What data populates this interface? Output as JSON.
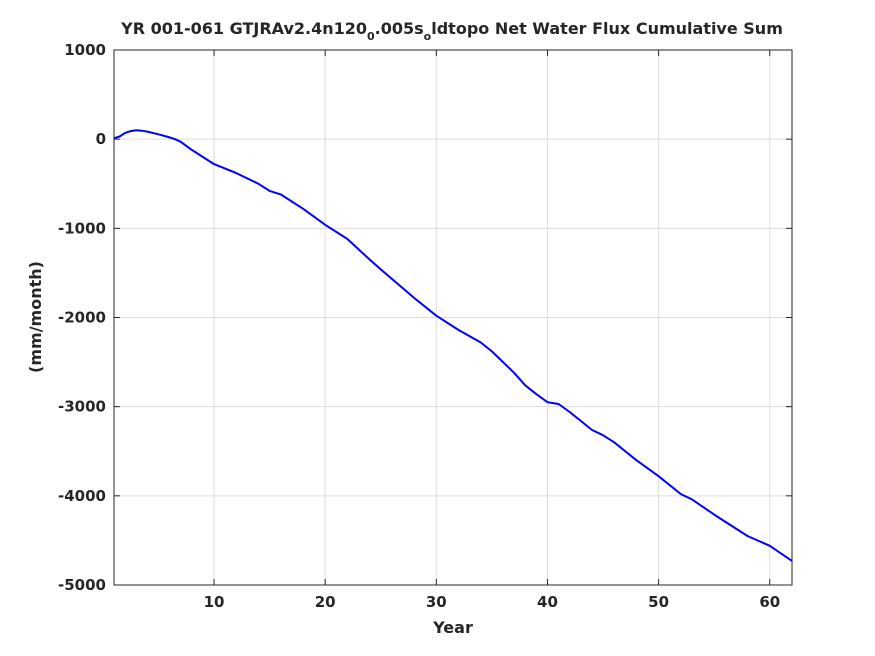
{
  "chart_data": {
    "type": "line",
    "title": {
      "prefix": "YR 001-061 GTJRAv2.4n120",
      "sub1": "0",
      "mid": ".005s",
      "sub2": "o",
      "suffix": "ldtopo Net Water Flux Cumulative Sum"
    },
    "xlabel": "Year",
    "ylabel": "(mm/month)",
    "xlim": [
      1,
      62
    ],
    "ylim": [
      -5000,
      1000
    ],
    "xticks": [
      10,
      20,
      30,
      40,
      50,
      60
    ],
    "yticks": [
      1000,
      0,
      -1000,
      -2000,
      -3000,
      -4000,
      -5000
    ],
    "grid": true,
    "series": [
      {
        "color": "#0000ff",
        "x": [
          1,
          1.5,
          2,
          2.5,
          3,
          3.5,
          4,
          5,
          6,
          6.5,
          7,
          8,
          10,
          12,
          14,
          15,
          16,
          18,
          20,
          22,
          24,
          25,
          28,
          30,
          32,
          34,
          35,
          37,
          38,
          39,
          40,
          40.5,
          41,
          42,
          44,
          45,
          46,
          48,
          50,
          52,
          53,
          55,
          58,
          60,
          62
        ],
        "y": [
          10,
          30,
          70,
          90,
          100,
          95,
          85,
          55,
          20,
          0,
          -30,
          -120,
          -280,
          -380,
          -500,
          -580,
          -620,
          -780,
          -960,
          -1120,
          -1350,
          -1460,
          -1780,
          -1980,
          -2140,
          -2280,
          -2380,
          -2620,
          -2760,
          -2860,
          -2950,
          -2960,
          -2970,
          -3060,
          -3260,
          -3320,
          -3400,
          -3600,
          -3780,
          -3980,
          -4040,
          -4210,
          -4450,
          -4560,
          -4730
        ]
      }
    ]
  }
}
